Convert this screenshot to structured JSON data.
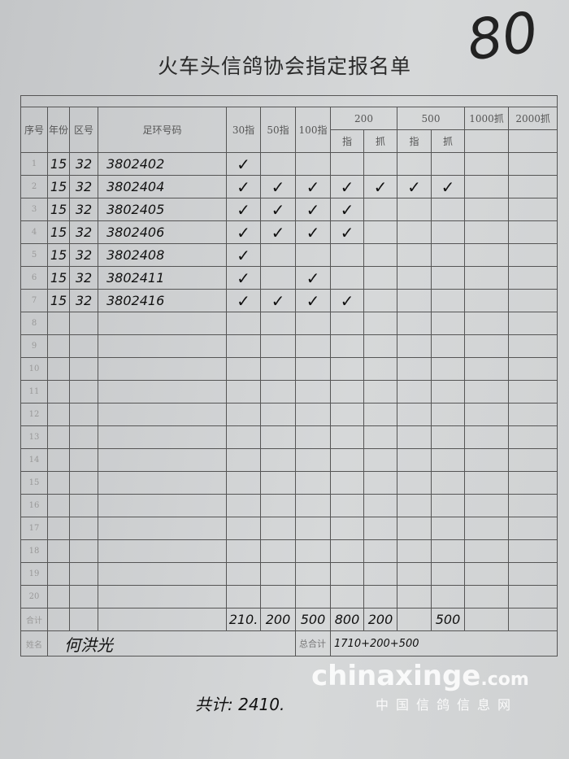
{
  "corner_number": "80",
  "title": "火车头信鸽协会指定报名单",
  "headers": {
    "seq": "序号",
    "year": "年份",
    "area": "区号",
    "ring": "足环号码",
    "c30": "30指",
    "c50": "50指",
    "c100": "100指",
    "c200": "200",
    "c500": "500",
    "c1000": "1000抓",
    "c2000": "2000抓",
    "zhi": "指",
    "zhua": "抓"
  },
  "check_mark": "✓",
  "rows": [
    {
      "seq": "1",
      "year": "15",
      "area": "32",
      "ring": "3802402",
      "checks": [
        1,
        0,
        0,
        0,
        0,
        0,
        0,
        0,
        0
      ]
    },
    {
      "seq": "2",
      "year": "15",
      "area": "32",
      "ring": "3802404",
      "checks": [
        1,
        1,
        1,
        1,
        1,
        1,
        1,
        0,
        0
      ]
    },
    {
      "seq": "3",
      "year": "15",
      "area": "32",
      "ring": "3802405",
      "checks": [
        1,
        1,
        1,
        1,
        0,
        0,
        0,
        0,
        0
      ]
    },
    {
      "seq": "4",
      "year": "15",
      "area": "32",
      "ring": "3802406",
      "checks": [
        1,
        1,
        1,
        1,
        0,
        0,
        0,
        0,
        0
      ]
    },
    {
      "seq": "5",
      "year": "15",
      "area": "32",
      "ring": "3802408",
      "checks": [
        1,
        0,
        0,
        0,
        0,
        0,
        0,
        0,
        0
      ]
    },
    {
      "seq": "6",
      "year": "15",
      "area": "32",
      "ring": "3802411",
      "checks": [
        1,
        0,
        1,
        0,
        0,
        0,
        0,
        0,
        0
      ]
    },
    {
      "seq": "7",
      "year": "15",
      "area": "32",
      "ring": "3802416",
      "checks": [
        1,
        1,
        1,
        1,
        0,
        0,
        0,
        0,
        0
      ]
    },
    {
      "seq": "8"
    },
    {
      "seq": "9"
    },
    {
      "seq": "10"
    },
    {
      "seq": "11"
    },
    {
      "seq": "12"
    },
    {
      "seq": "13"
    },
    {
      "seq": "14"
    },
    {
      "seq": "15"
    },
    {
      "seq": "16"
    },
    {
      "seq": "17"
    },
    {
      "seq": "18"
    },
    {
      "seq": "19"
    },
    {
      "seq": "20"
    }
  ],
  "totals": {
    "label": "合计",
    "values": [
      "210.",
      "200",
      "500",
      "800",
      "200",
      "",
      "500",
      "",
      ""
    ]
  },
  "name_row": {
    "label": "姓名",
    "name": "何洪光",
    "grand_label": "总合计",
    "grand_value": "1710+200+500"
  },
  "grand_total": "共计: 2410.",
  "watermark": {
    "site": "chinaxinge",
    "tld": ".com",
    "cn": "中国信鸽信息网"
  }
}
